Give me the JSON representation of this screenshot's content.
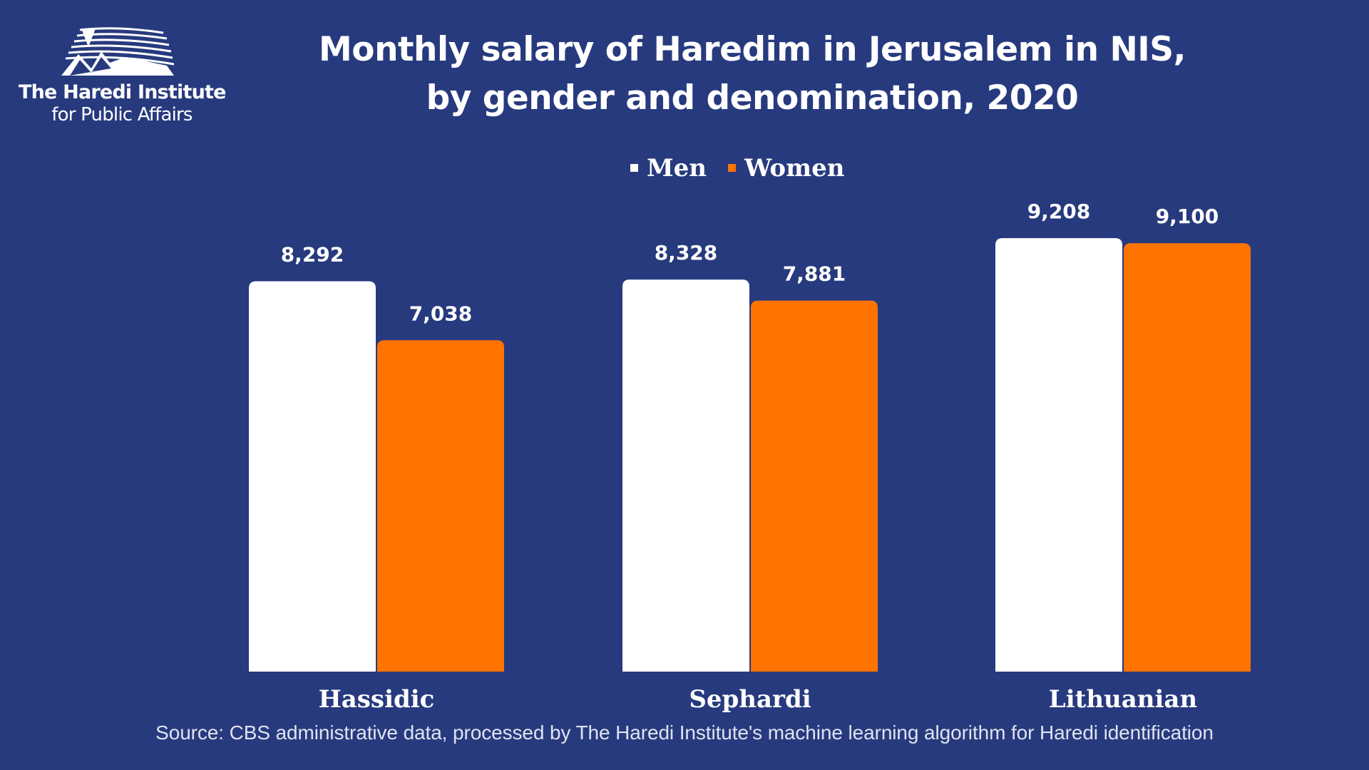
{
  "logo": {
    "line1": "The Haredi Institute",
    "line2": "for Public Affairs"
  },
  "colors": {
    "background": "#273a7e",
    "men": "#ffffff",
    "women": "#ff7300",
    "text": "#ffffff"
  },
  "chart_data": {
    "type": "bar",
    "title_lines": [
      "Monthly salary of Haredim in Jerusalem in NIS,",
      "by gender and denomination, 2020"
    ],
    "categories": [
      "Hassidic",
      "Sephardi",
      "Lithuanian"
    ],
    "series": [
      {
        "name": "Men",
        "values": [
          8292,
          8328,
          9208
        ],
        "labels": [
          "8,292",
          "8,328",
          "9,208"
        ]
      },
      {
        "name": "Women",
        "values": [
          7038,
          7881,
          9100
        ],
        "labels": [
          "7,038",
          "7,881",
          "9,100"
        ]
      }
    ],
    "xlabel": "",
    "ylabel": "",
    "ylim": [
      0,
      9208
    ],
    "grid": false,
    "legend": "top-center"
  },
  "source": "Source: CBS administrative data, processed by The Haredi Institute's machine learning algorithm for Haredi identification"
}
